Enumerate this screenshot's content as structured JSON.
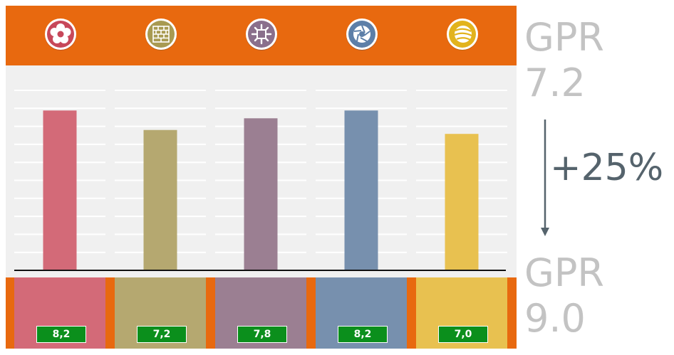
{
  "header": {
    "icons": [
      {
        "name": "flower-icon",
        "color": "#c7485a"
      },
      {
        "name": "brick-wall-icon",
        "color": "#a89a52"
      },
      {
        "name": "snowflake-icon",
        "color": "#8a6f8c"
      },
      {
        "name": "camera-aperture-icon",
        "color": "#5d7fa8"
      },
      {
        "name": "ball-icon",
        "color": "#e2b31d"
      }
    ],
    "background": "#e8690f"
  },
  "chart_data": {
    "type": "bar",
    "categories": [
      "",
      "",
      "",
      "",
      ""
    ],
    "values": [
      8.2,
      7.2,
      7.8,
      8.2,
      7.0
    ],
    "value_labels": [
      "8,2",
      "7,2",
      "7,8",
      "8,2",
      "7,0"
    ],
    "colors": [
      "#d36a78",
      "#b5a870",
      "#9b7f92",
      "#7790ae",
      "#e8c150"
    ],
    "ylim": [
      0,
      11
    ],
    "grid": true,
    "title": "",
    "xlabel": "",
    "ylabel": ""
  },
  "side": {
    "top_line1": "GPR",
    "top_line2": "7.2",
    "change": "+25%",
    "bottom_line1": "GPR",
    "bottom_line2": "9.0",
    "arrow_color": "#55636c"
  }
}
